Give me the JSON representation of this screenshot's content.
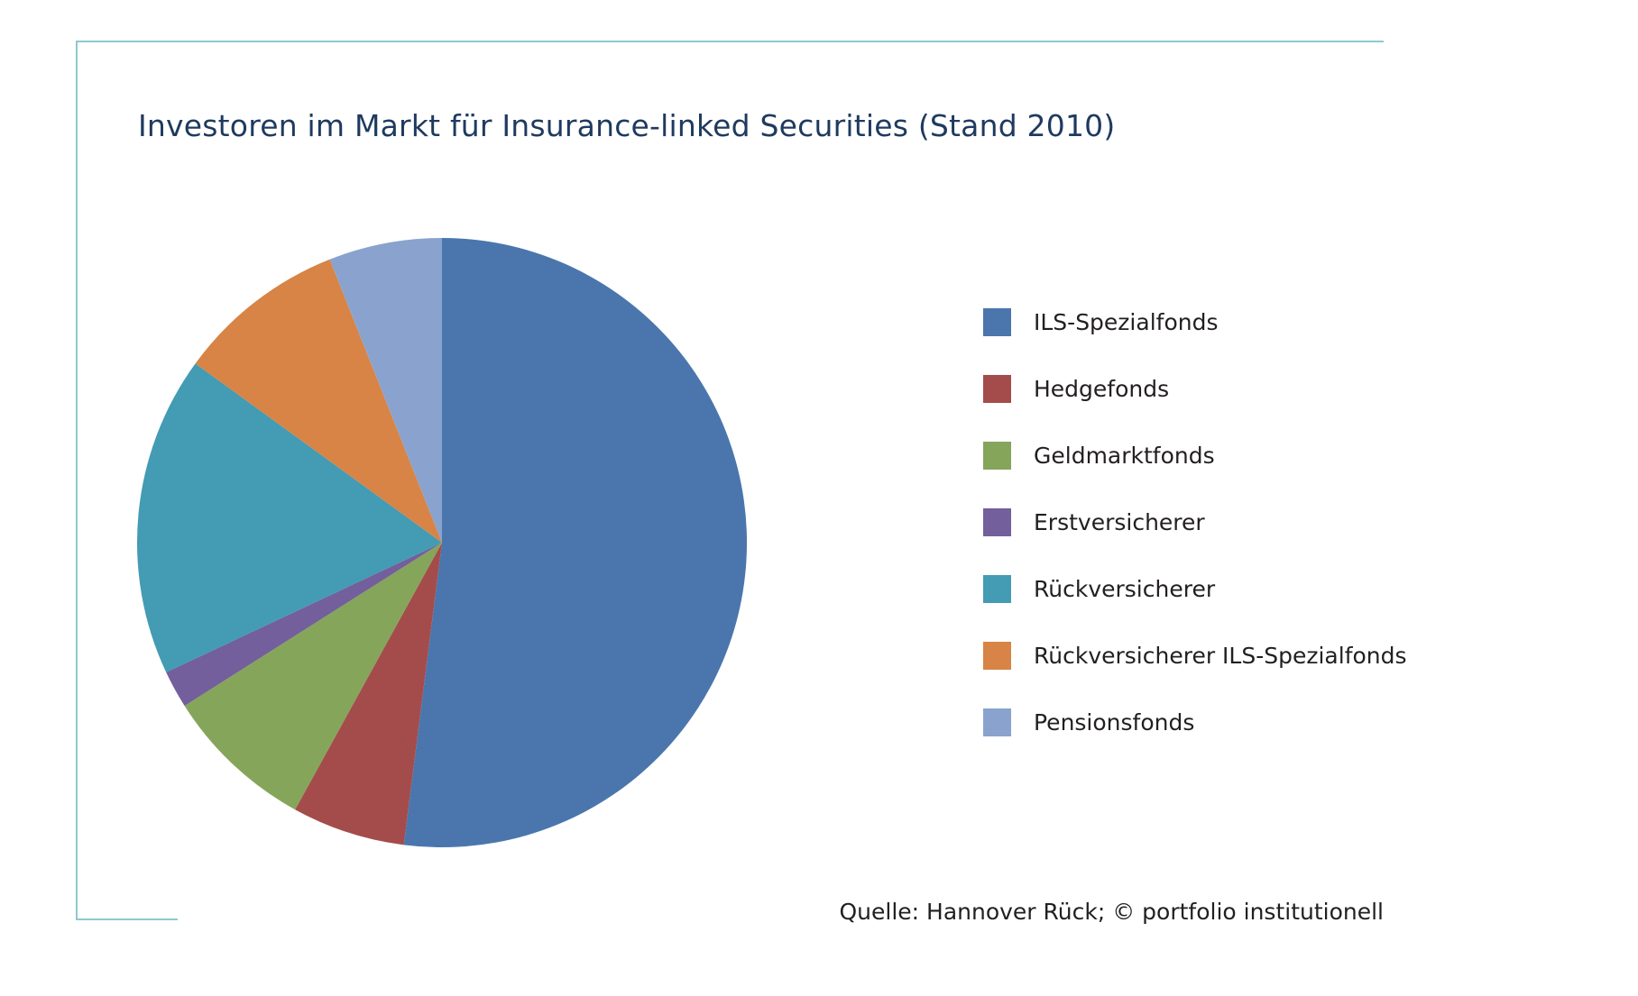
{
  "chart_data": {
    "type": "pie",
    "title": "Investoren im Markt für Insurance-linked Securities (Stand 2010)",
    "source": "Quelle: Hannover Rück; © portfolio institutionell",
    "legend_position": "right",
    "slices": [
      {
        "label": "ILS-Spezialfonds",
        "value": 52,
        "color": "#4a76ad"
      },
      {
        "label": "Hedgefonds",
        "value": 6,
        "color": "#a44c4b"
      },
      {
        "label": "Geldmarktfonds",
        "value": 8,
        "color": "#85a55b"
      },
      {
        "label": "Erstversicherer",
        "value": 2,
        "color": "#735f9b"
      },
      {
        "label": "Rückversicherer",
        "value": 17,
        "color": "#439bb4"
      },
      {
        "label": "Rückversicherer ILS-Spezialfonds",
        "value": 9,
        "color": "#d78446"
      },
      {
        "label": "Pensionsfonds",
        "value": 6,
        "color": "#89a3ce"
      }
    ]
  }
}
